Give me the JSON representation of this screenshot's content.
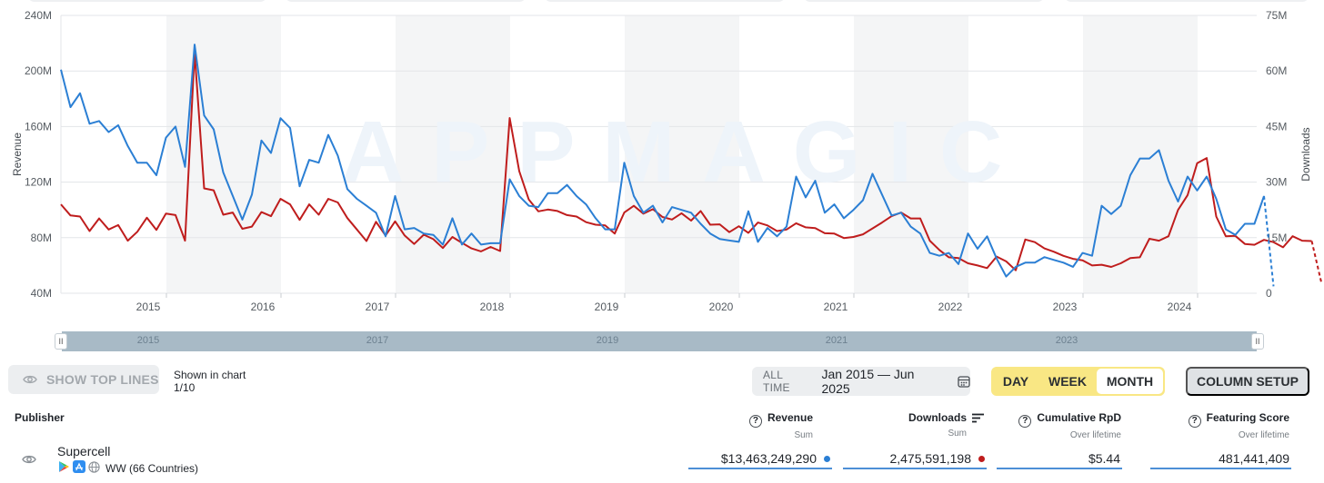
{
  "colors": {
    "revenue": "#2b7fd4",
    "downloads": "#bf1d1d",
    "accent_period": "#f9e784"
  },
  "chart_data": {
    "type": "line",
    "x_start": "2014-03",
    "x_step": "month",
    "x_ticks": [
      "2015",
      "2016",
      "2017",
      "2018",
      "2019",
      "2020",
      "2021",
      "2022",
      "2023",
      "2024"
    ],
    "ylabel": "Revenue",
    "y2label": "Downloads",
    "y_ticks": [
      "40M",
      "80M",
      "120M",
      "160M",
      "200M",
      "240M"
    ],
    "y2_ticks": [
      "0",
      "15M",
      "30M",
      "45M",
      "60M",
      "75M"
    ],
    "ylim": [
      40,
      240
    ],
    "y2lim": [
      0,
      75
    ],
    "units": "millions",
    "series": [
      {
        "axis": "left",
        "values": [
          201,
          174,
          184,
          162,
          164,
          156,
          161,
          146,
          134,
          134,
          125,
          152,
          160,
          131,
          219,
          168,
          158,
          127,
          110,
          93,
          111,
          150,
          141,
          166,
          159,
          117,
          136,
          134,
          154,
          139,
          115,
          108,
          103,
          98,
          81,
          110,
          86,
          87,
          83,
          82,
          75,
          94,
          75,
          83,
          75,
          76,
          76,
          122,
          110,
          103,
          102,
          112,
          112,
          118,
          110,
          104,
          94,
          86,
          86,
          134,
          110,
          98,
          103,
          91,
          102,
          100,
          98,
          90,
          83,
          79,
          78,
          77,
          99,
          77,
          87,
          81,
          88,
          124,
          109,
          121,
          98,
          104,
          94,
          100,
          107,
          126,
          111,
          96,
          98,
          88,
          83,
          69,
          67,
          69,
          61,
          83,
          72,
          81,
          65,
          52,
          59,
          62,
          62,
          66,
          64,
          62,
          59,
          69,
          67,
          103,
          97,
          103,
          125,
          137,
          137,
          143,
          121,
          106,
          124,
          114,
          124,
          108,
          86,
          82,
          90,
          90,
          110,
          45
        ]
      },
      {
        "axis": "right",
        "values": [
          24,
          21,
          20.7,
          16.8,
          20.2,
          17.2,
          18.4,
          14.2,
          16.6,
          20.4,
          17.1,
          21.5,
          21.1,
          14.2,
          65,
          28.3,
          27.8,
          21.2,
          21.8,
          17.4,
          18,
          21.9,
          20.8,
          25.5,
          24,
          19.8,
          24,
          21.2,
          25.5,
          24.5,
          20.3,
          17.2,
          14.1,
          19.3,
          15.6,
          19.4,
          15.6,
          13.3,
          15.8,
          14.6,
          12.2,
          15.2,
          13.6,
          12.1,
          11.3,
          12.5,
          11.4,
          47.3,
          33,
          25.3,
          22.1,
          22.6,
          22.2,
          21.1,
          20.7,
          19.2,
          18.5,
          18.3,
          16.1,
          21.8,
          23.6,
          21.5,
          22.7,
          20.6,
          19.9,
          21.6,
          19.6,
          22.2,
          18.5,
          18.6,
          16.5,
          18.1,
          16.3,
          19.1,
          18.3,
          16.8,
          17.2,
          18.9,
          17.8,
          17.6,
          16.2,
          16.1,
          14.9,
          15.2,
          15.9,
          17.5,
          19.1,
          20.8,
          21.8,
          20.2,
          20.2,
          14.2,
          11.7,
          9.7,
          9.5,
          8.1,
          7.5,
          6.8,
          9.9,
          8.6,
          6.2,
          14.5,
          13.8,
          12.1,
          11.2,
          10.1,
          9.3,
          8.9,
          7.5,
          7.7,
          7.1,
          8.1,
          9.5,
          9.7,
          14.7,
          14.2,
          15.4,
          22.5,
          26.5,
          35.1,
          36.5,
          20.7,
          15.4,
          15.5,
          13.3,
          13.1,
          14.4,
          13.8,
          12.4,
          15.4,
          14.2,
          14.1,
          3
        ]
      }
    ]
  },
  "navigator": {
    "labels": [
      "2015",
      "2017",
      "2019",
      "2021",
      "2023"
    ]
  },
  "toolbar": {
    "show_top_lines": "SHOW TOP LINES",
    "shown_in_chart_label": "Shown in chart",
    "shown_in_chart_count": "1/10",
    "all_time": "ALL TIME",
    "date_range": "Jan 2015 — Jun 2025",
    "period_day": "DAY",
    "period_week": "WEEK",
    "period_month": "MONTH",
    "column_setup": "COLUMN SETUP"
  },
  "table": {
    "columns": {
      "publisher": "Publisher",
      "revenue": "Revenue",
      "revenue_sub": "Sum",
      "downloads": "Downloads",
      "downloads_sub": "Sum",
      "cumulative_rpd": "Cumulative RpD",
      "cumulative_rpd_sub": "Over lifetime",
      "featuring_score": "Featuring Score",
      "featuring_score_sub": "Over lifetime"
    },
    "rows": [
      {
        "publisher": "Supercell",
        "region": "WW (66 Countries)",
        "revenue": "$13,463,249,290",
        "downloads": "2,475,591,198",
        "cumulative_rpd": "$5.44",
        "featuring_score": "481,441,409"
      }
    ]
  }
}
